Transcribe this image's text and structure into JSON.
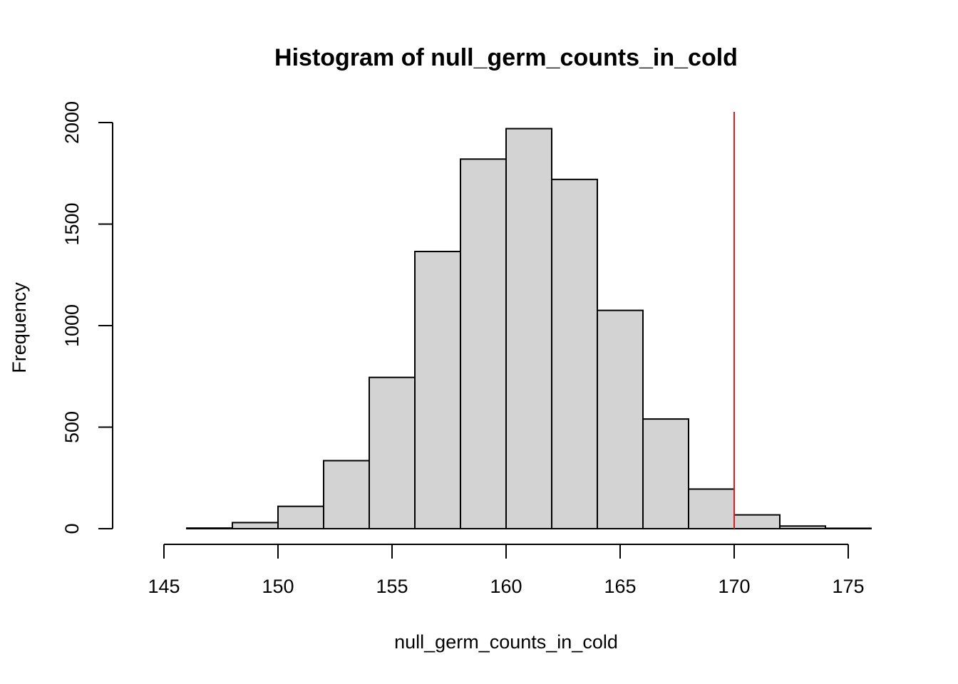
{
  "chart_data": {
    "type": "bar",
    "title": "Histogram of null_germ_counts_in_cold",
    "xlabel": "null_germ_counts_in_cold",
    "ylabel": "Frequency",
    "xlim": [
      144,
      176
    ],
    "ylim": [
      0,
      2050
    ],
    "x_ticks": [
      145,
      150,
      155,
      160,
      165,
      170,
      175
    ],
    "y_ticks": [
      0,
      500,
      1000,
      1500,
      2000
    ],
    "bins": [
      {
        "x0": 144,
        "x1": 146,
        "count": 0
      },
      {
        "x0": 146,
        "x1": 148,
        "count": 3
      },
      {
        "x0": 148,
        "x1": 150,
        "count": 30
      },
      {
        "x0": 150,
        "x1": 152,
        "count": 110
      },
      {
        "x0": 152,
        "x1": 154,
        "count": 335
      },
      {
        "x0": 154,
        "x1": 156,
        "count": 745
      },
      {
        "x0": 156,
        "x1": 158,
        "count": 1365
      },
      {
        "x0": 158,
        "x1": 160,
        "count": 1820
      },
      {
        "x0": 160,
        "x1": 162,
        "count": 1970
      },
      {
        "x0": 162,
        "x1": 164,
        "count": 1720
      },
      {
        "x0": 164,
        "x1": 166,
        "count": 1075
      },
      {
        "x0": 166,
        "x1": 168,
        "count": 540
      },
      {
        "x0": 168,
        "x1": 170,
        "count": 195
      },
      {
        "x0": 170,
        "x1": 172,
        "count": 68
      },
      {
        "x0": 172,
        "x1": 174,
        "count": 13
      },
      {
        "x0": 174,
        "x1": 176,
        "count": 2
      }
    ],
    "reference_line": {
      "x": 170,
      "color": "#e31a1c"
    },
    "grid": false,
    "legend": "none"
  }
}
